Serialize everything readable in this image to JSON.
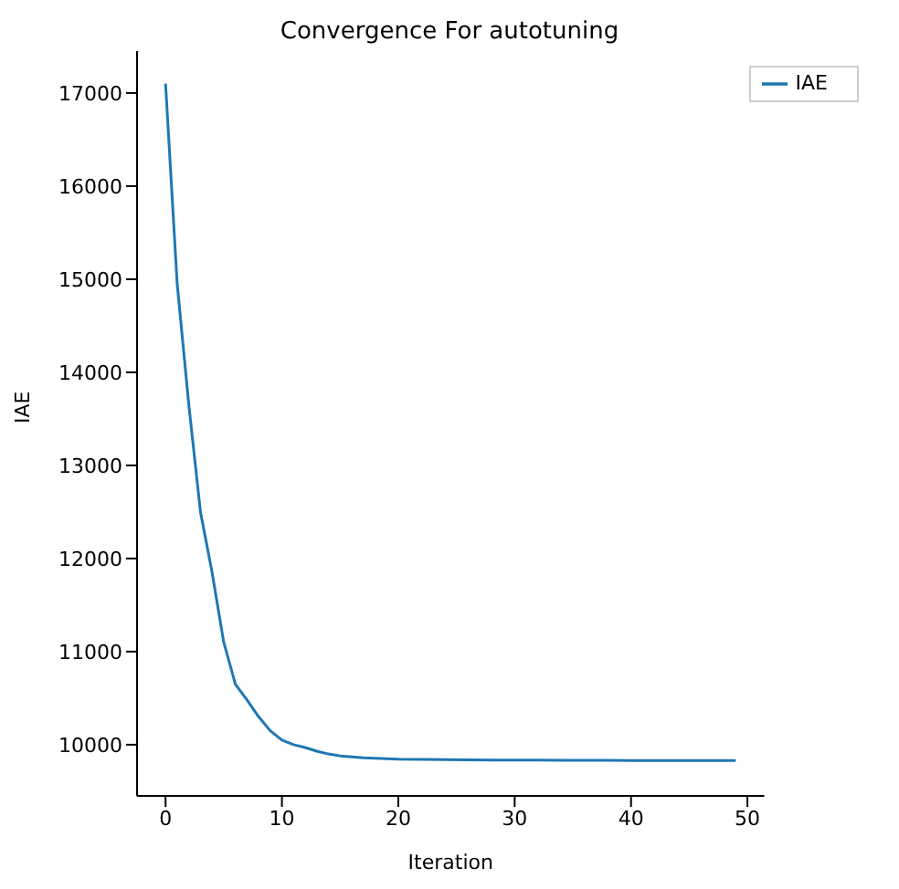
{
  "chart_data": {
    "type": "line",
    "title": "Convergence For autotuning",
    "xlabel": "Iteration",
    "ylabel": "IAE",
    "x": [
      0,
      1,
      2,
      3,
      4,
      5,
      6,
      7,
      8,
      9,
      10,
      11,
      12,
      13,
      14,
      15,
      16,
      17,
      18,
      19,
      20,
      22,
      24,
      26,
      28,
      30,
      32,
      34,
      36,
      38,
      40,
      42,
      44,
      46,
      48,
      49
    ],
    "series": [
      {
        "name": "IAE",
        "color": "#1f77b4",
        "values": [
          17100,
          14950,
          13650,
          12500,
          11850,
          11100,
          10650,
          10480,
          10300,
          10150,
          10050,
          10000,
          9970,
          9930,
          9900,
          9880,
          9870,
          9860,
          9855,
          9850,
          9845,
          9842,
          9840,
          9838,
          9836,
          9835,
          9834,
          9833,
          9832,
          9832,
          9831,
          9831,
          9830,
          9830,
          9830,
          9830
        ]
      }
    ],
    "xlim": [
      -2.45,
      51.45
    ],
    "xticks": [
      0,
      10,
      20,
      30,
      40,
      50
    ],
    "ylim": [
      9450,
      17450
    ],
    "yticks": [
      10000,
      11000,
      12000,
      13000,
      14000,
      15000,
      16000,
      17000
    ],
    "legend": "top right",
    "grid": false,
    "marker": "none",
    "line_style": "solid"
  }
}
